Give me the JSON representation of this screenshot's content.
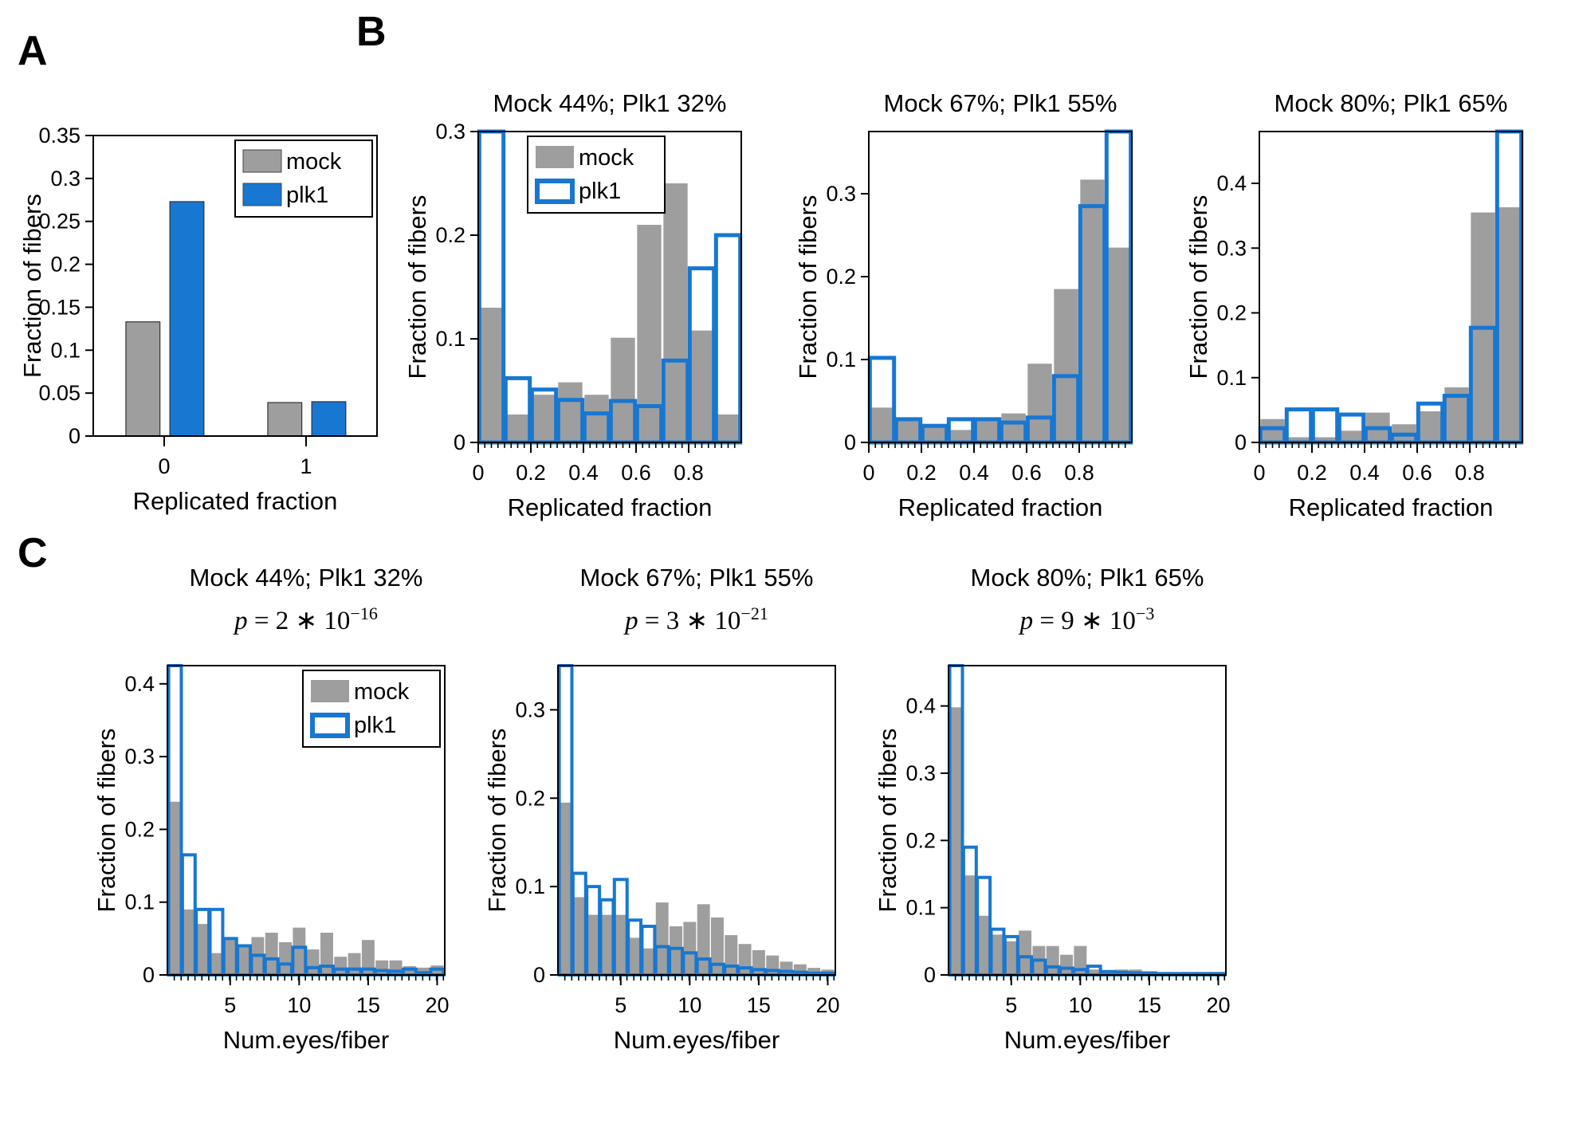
{
  "panels": {
    "A": {
      "label": "A"
    },
    "B": {
      "label": "B"
    },
    "C": {
      "label": "C"
    }
  },
  "colors": {
    "mock": "#9e9e9e",
    "plk1": "#1777d1",
    "axis": "#000000",
    "background": "#ffffff"
  },
  "chart_data": [
    {
      "id": "A",
      "type": "bar",
      "title": "",
      "xlabel": "Replicated fraction",
      "ylabel": "Fraction of fibers",
      "categories": [
        0,
        1
      ],
      "xtick_labels": [
        "0",
        "1"
      ],
      "xlim": [
        -0.5,
        1.5
      ],
      "ylim": [
        0,
        0.35
      ],
      "yticks": [
        0,
        0.05,
        0.1,
        0.15,
        0.2,
        0.25,
        0.3,
        0.35
      ],
      "ytick_labels": [
        "0",
        "0.05",
        "0.1",
        "0.15",
        "0.2",
        "0.25",
        "0.3",
        "0.35"
      ],
      "series": [
        {
          "name": "mock",
          "values": [
            0.133,
            0.039
          ]
        },
        {
          "name": "plk1",
          "values": [
            0.273,
            0.04
          ]
        }
      ],
      "legend": {
        "style": "filled",
        "pos": "tr",
        "mock": "mock",
        "plk1": "plk1"
      }
    },
    {
      "id": "B1",
      "type": "bar",
      "title": "Mock 44%; Plk1 32%",
      "xlabel": "Replicated fraction",
      "ylabel": "Fraction of fibers",
      "x": [
        0.05,
        0.15,
        0.25,
        0.35,
        0.45,
        0.55,
        0.65,
        0.75,
        0.85,
        0.95
      ],
      "bin_width": 0.1,
      "xlim": [
        0,
        1
      ],
      "xticks": [
        0,
        0.2,
        0.4,
        0.6,
        0.8
      ],
      "xtick_labels": [
        "0",
        "0.2",
        "0.4",
        "0.6",
        "0.8"
      ],
      "x_minor_step": 0.025,
      "ylim": [
        0,
        0.3
      ],
      "yticks": [
        0,
        0.1,
        0.2,
        0.3
      ],
      "ytick_labels": [
        "0",
        "0.1",
        "0.2",
        "0.3"
      ],
      "series": [
        {
          "name": "mock",
          "values": [
            0.13,
            0.027,
            0.046,
            0.058,
            0.046,
            0.101,
            0.21,
            0.25,
            0.108,
            0.027
          ]
        },
        {
          "name": "plk1",
          "values": [
            0.3,
            0.062,
            0.051,
            0.041,
            0.028,
            0.04,
            0.035,
            0.079,
            0.168,
            0.2
          ]
        }
      ],
      "legend": {
        "style": "outline",
        "pos": "tl",
        "mock": "mock",
        "plk1": "plk1"
      }
    },
    {
      "id": "B2",
      "type": "bar",
      "title": "Mock 67%; Plk1 55%",
      "xlabel": "Replicated fraction",
      "ylabel": "Fraction of fibers",
      "x": [
        0.05,
        0.15,
        0.25,
        0.35,
        0.45,
        0.55,
        0.65,
        0.75,
        0.85,
        0.95
      ],
      "bin_width": 0.1,
      "xlim": [
        0,
        1
      ],
      "xticks": [
        0,
        0.2,
        0.4,
        0.6,
        0.8
      ],
      "xtick_labels": [
        "0",
        "0.2",
        "0.4",
        "0.6",
        "0.8"
      ],
      "x_minor_step": 0.025,
      "ylim": [
        0,
        0.375
      ],
      "yticks": [
        0,
        0.1,
        0.2,
        0.3
      ],
      "ytick_labels": [
        "0",
        "0.1",
        "0.2",
        "0.3"
      ],
      "series": [
        {
          "name": "mock",
          "values": [
            0.042,
            0.028,
            0.018,
            0.015,
            0.027,
            0.035,
            0.095,
            0.185,
            0.317,
            0.235
          ]
        },
        {
          "name": "plk1",
          "values": [
            0.102,
            0.028,
            0.02,
            0.028,
            0.028,
            0.024,
            0.03,
            0.08,
            0.285,
            0.375
          ]
        }
      ],
      "legend": null
    },
    {
      "id": "B3",
      "type": "bar",
      "title": "Mock 80%; Plk1 65%",
      "xlabel": "Replicated fraction",
      "ylabel": "Fraction of fibers",
      "x": [
        0.05,
        0.15,
        0.25,
        0.35,
        0.45,
        0.55,
        0.65,
        0.75,
        0.85,
        0.95
      ],
      "bin_width": 0.1,
      "xlim": [
        0,
        1
      ],
      "xticks": [
        0,
        0.2,
        0.4,
        0.6,
        0.8
      ],
      "xtick_labels": [
        "0",
        "0.2",
        "0.4",
        "0.6",
        "0.8"
      ],
      "x_minor_step": 0.025,
      "ylim": [
        0,
        0.48
      ],
      "yticks": [
        0,
        0.1,
        0.2,
        0.3,
        0.4
      ],
      "ytick_labels": [
        "0",
        "0.1",
        "0.2",
        "0.3",
        "0.4"
      ],
      "series": [
        {
          "name": "mock",
          "values": [
            0.036,
            0.008,
            0.008,
            0.018,
            0.046,
            0.028,
            0.048,
            0.085,
            0.355,
            0.363
          ]
        },
        {
          "name": "plk1",
          "values": [
            0.022,
            0.051,
            0.051,
            0.043,
            0.022,
            0.012,
            0.06,
            0.072,
            0.177,
            0.48
          ]
        }
      ],
      "legend": null
    },
    {
      "id": "C1",
      "type": "bar",
      "title": "Mock 44%; Plk1 32%",
      "p": {
        "var": "p",
        "mid": " = 2 ∗ 10",
        "exp": "−16"
      },
      "xlabel": "Num.eyes/fiber",
      "ylabel": "Fraction of fibers",
      "x": [
        1,
        2,
        3,
        4,
        5,
        6,
        7,
        8,
        9,
        10,
        11,
        12,
        13,
        14,
        15,
        16,
        17,
        18,
        19,
        20
      ],
      "bin_width": 1,
      "xlim": [
        0.45,
        20.55
      ],
      "xticks": [
        5,
        10,
        15,
        20
      ],
      "xtick_labels": [
        "5",
        "10",
        "15",
        "20"
      ],
      "x_minor_step": 0.5,
      "ylim": [
        0,
        0.425
      ],
      "yticks": [
        0,
        0.1,
        0.2,
        0.3,
        0.4
      ],
      "ytick_labels": [
        "0",
        "0.1",
        "0.2",
        "0.3",
        "0.4"
      ],
      "series": [
        {
          "name": "mock",
          "values": [
            0.238,
            0.09,
            0.07,
            0.03,
            0.052,
            0.04,
            0.052,
            0.058,
            0.045,
            0.065,
            0.035,
            0.058,
            0.025,
            0.03,
            0.048,
            0.02,
            0.02,
            0.012,
            0.01,
            0.013
          ]
        },
        {
          "name": "plk1",
          "values": [
            0.425,
            0.165,
            0.09,
            0.09,
            0.05,
            0.04,
            0.027,
            0.022,
            0.015,
            0.038,
            0.01,
            0.012,
            0.008,
            0.008,
            0.008,
            0.006,
            0.005,
            0.008,
            0.003,
            0.008
          ]
        }
      ],
      "legend": {
        "style": "outline",
        "pos": "tr",
        "mock": "mock",
        "plk1": "plk1"
      }
    },
    {
      "id": "C2",
      "type": "bar",
      "title": "Mock 67%; Plk1 55%",
      "p": {
        "var": "p",
        "mid": " = 3 ∗ 10",
        "exp": "−21"
      },
      "xlabel": "Num.eyes/fiber",
      "ylabel": "Fraction of fibers",
      "x": [
        1,
        2,
        3,
        4,
        5,
        6,
        7,
        8,
        9,
        10,
        11,
        12,
        13,
        14,
        15,
        16,
        17,
        18,
        19,
        20
      ],
      "bin_width": 1,
      "xlim": [
        0.45,
        20.55
      ],
      "xticks": [
        5,
        10,
        15,
        20
      ],
      "xtick_labels": [
        "5",
        "10",
        "15",
        "20"
      ],
      "x_minor_step": 0.5,
      "ylim": [
        0,
        0.35
      ],
      "yticks": [
        0,
        0.1,
        0.2,
        0.3
      ],
      "ytick_labels": [
        "0",
        "0.1",
        "0.2",
        "0.3"
      ],
      "series": [
        {
          "name": "mock",
          "values": [
            0.195,
            0.088,
            0.068,
            0.068,
            0.068,
            0.042,
            0.03,
            0.082,
            0.055,
            0.06,
            0.08,
            0.065,
            0.045,
            0.035,
            0.028,
            0.022,
            0.015,
            0.012,
            0.008,
            0.006
          ]
        },
        {
          "name": "plk1",
          "values": [
            0.35,
            0.115,
            0.1,
            0.085,
            0.108,
            0.062,
            0.055,
            0.032,
            0.03,
            0.025,
            0.018,
            0.012,
            0.01,
            0.008,
            0.006,
            0.005,
            0.004,
            0.003,
            0.002,
            0.002
          ]
        }
      ],
      "legend": null
    },
    {
      "id": "C3",
      "type": "bar",
      "title": "Mock 80%; Plk1 65%",
      "p": {
        "var": "p",
        "mid": " = 9 ∗ 10",
        "exp": "−3"
      },
      "xlabel": "Num.eyes/fiber",
      "ylabel": "Fraction of fibers",
      "x": [
        1,
        2,
        3,
        4,
        5,
        6,
        7,
        8,
        9,
        10,
        11,
        12,
        13,
        14,
        15,
        16,
        17,
        18,
        19,
        20
      ],
      "bin_width": 1,
      "xlim": [
        0.45,
        20.55
      ],
      "xticks": [
        5,
        10,
        15,
        20
      ],
      "xtick_labels": [
        "5",
        "10",
        "15",
        "20"
      ],
      "x_minor_step": 0.5,
      "ylim": [
        0,
        0.46
      ],
      "yticks": [
        0,
        0.1,
        0.2,
        0.3,
        0.4
      ],
      "ytick_labels": [
        "0",
        "0.1",
        "0.2",
        "0.3",
        "0.4"
      ],
      "series": [
        {
          "name": "mock",
          "values": [
            0.398,
            0.148,
            0.088,
            0.06,
            0.05,
            0.066,
            0.043,
            0.043,
            0.03,
            0.043,
            0.008,
            0.005,
            0.008,
            0.008,
            0.005,
            0.003,
            0.003,
            0.002,
            0.002,
            0.002
          ]
        },
        {
          "name": "plk1",
          "values": [
            0.46,
            0.19,
            0.145,
            0.068,
            0.057,
            0.027,
            0.022,
            0.012,
            0.01,
            0.008,
            0.013,
            0.005,
            0.004,
            0.003,
            0.003,
            0.002,
            0.002,
            0.002,
            0.002,
            0.002
          ]
        }
      ],
      "legend": null
    }
  ]
}
